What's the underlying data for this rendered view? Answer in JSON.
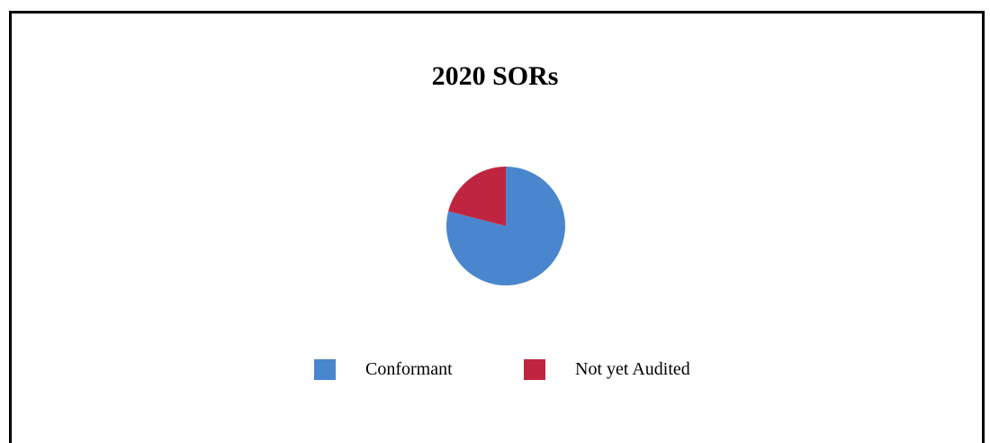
{
  "chart_data": {
    "type": "pie",
    "title": "2020 SORs",
    "categories": [
      "Conformant",
      "Not yet Audited"
    ],
    "values": [
      79,
      21
    ],
    "colors": [
      "#4A86CD",
      "#C0253F"
    ],
    "legend_position": "bottom"
  }
}
